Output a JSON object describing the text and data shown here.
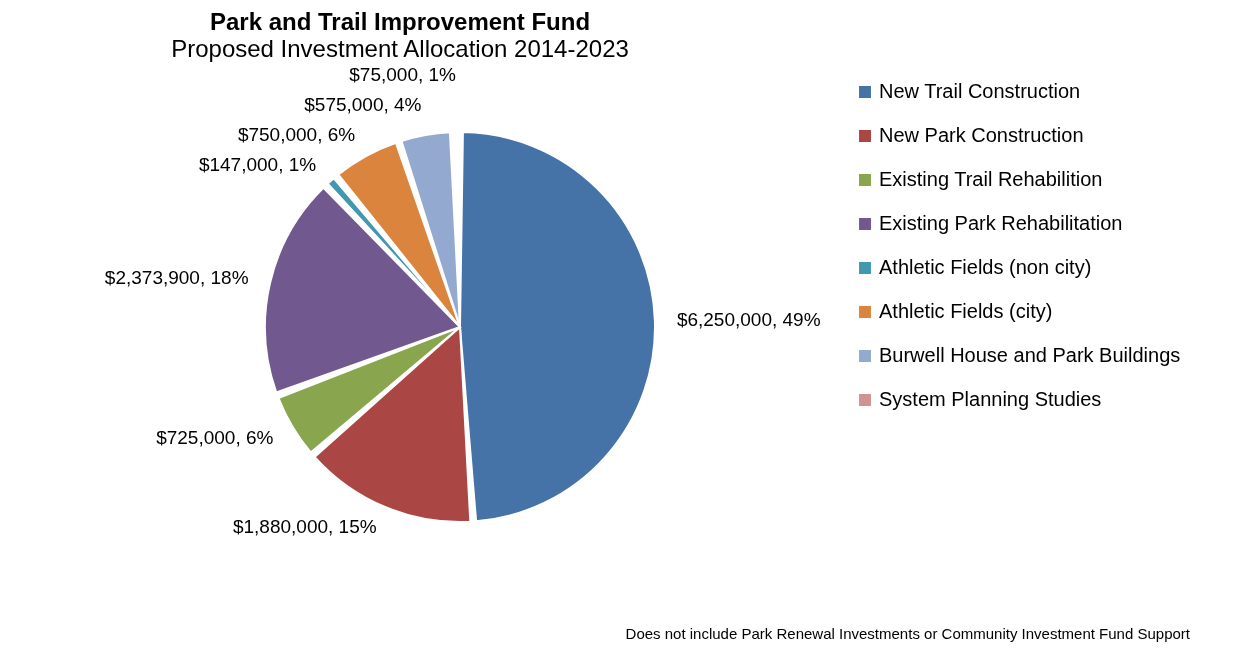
{
  "chart_data": {
    "type": "pie",
    "title": "Park and Trail Improvement Fund",
    "subtitle": "Proposed Investment Allocation 2014-2023",
    "categories": [
      "New Trail Construction",
      "New Park Construction",
      "Existing Trail Rehabilition",
      "Existing Park Rehabilitation",
      "Athletic Fields (non city)",
      "Athletic Fields (city)",
      "Burwell House and Park Buildings",
      "System Planning Studies"
    ],
    "values": [
      6250000,
      1880000,
      725000,
      2373900,
      147000,
      750000,
      575000,
      75000
    ],
    "colors": [
      "#4572a7",
      "#aa4643",
      "#89a54e",
      "#71588f",
      "#4198af",
      "#db843d",
      "#93a9cf",
      "#d19392"
    ],
    "value_labels": [
      "$6,250,000, 49%",
      "$1,880,000, 15%",
      "$725,000, 6%",
      "$2,373,900, 18%",
      "$147,000, 1%",
      "$750,000, 6%",
      "$575,000, 4%",
      "$75,000, 1%"
    ],
    "legend": "right",
    "annotations": [
      "Does not include Park Renewal Investments or Community Investment Fund Support"
    ]
  }
}
